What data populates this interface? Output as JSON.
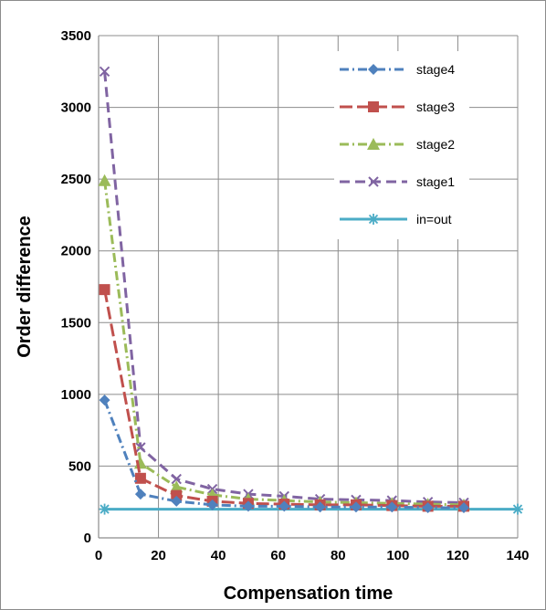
{
  "chart_data": {
    "type": "line",
    "title": "",
    "xlabel": "Compensation time",
    "ylabel": "Order difference",
    "xlim": [
      0,
      140
    ],
    "ylim": [
      0,
      3500
    ],
    "x_ticks": [
      0,
      20,
      40,
      60,
      80,
      100,
      120,
      140
    ],
    "y_ticks": [
      0,
      500,
      1000,
      1500,
      2000,
      2500,
      3000,
      3500
    ],
    "grid": true,
    "legend_position": "top-right",
    "series": [
      {
        "name": "stage4",
        "color": "#4F81BD",
        "marker": "diamond",
        "dash": "dash-dot",
        "x": [
          2,
          14,
          26,
          38,
          50,
          62,
          74,
          86,
          98,
          110,
          122
        ],
        "y": [
          960,
          305,
          255,
          230,
          220,
          220,
          215,
          215,
          215,
          210,
          210
        ]
      },
      {
        "name": "stage3",
        "color": "#C0504D",
        "marker": "square",
        "dash": "long-dash",
        "x": [
          2,
          14,
          26,
          38,
          50,
          62,
          74,
          86,
          98,
          110,
          122
        ],
        "y": [
          1730,
          415,
          295,
          255,
          240,
          235,
          230,
          230,
          225,
          220,
          220
        ]
      },
      {
        "name": "stage2",
        "color": "#9BBB59",
        "marker": "triangle",
        "dash": "dash-dot",
        "x": [
          2,
          14,
          26,
          38,
          50,
          62,
          74,
          86,
          98,
          110,
          122
        ],
        "y": [
          2490,
          520,
          355,
          300,
          270,
          260,
          250,
          245,
          240,
          235,
          230
        ]
      },
      {
        "name": "stage1",
        "color": "#8064A2",
        "marker": "x",
        "dash": "dash",
        "x": [
          2,
          14,
          26,
          38,
          50,
          62,
          74,
          86,
          98,
          110,
          122
        ],
        "y": [
          3250,
          630,
          410,
          340,
          305,
          290,
          270,
          265,
          260,
          250,
          245
        ]
      },
      {
        "name": "in=out",
        "color": "#4BACC6",
        "marker": "star",
        "dash": "solid",
        "x": [
          2,
          140
        ],
        "y": [
          200,
          200
        ]
      }
    ]
  }
}
